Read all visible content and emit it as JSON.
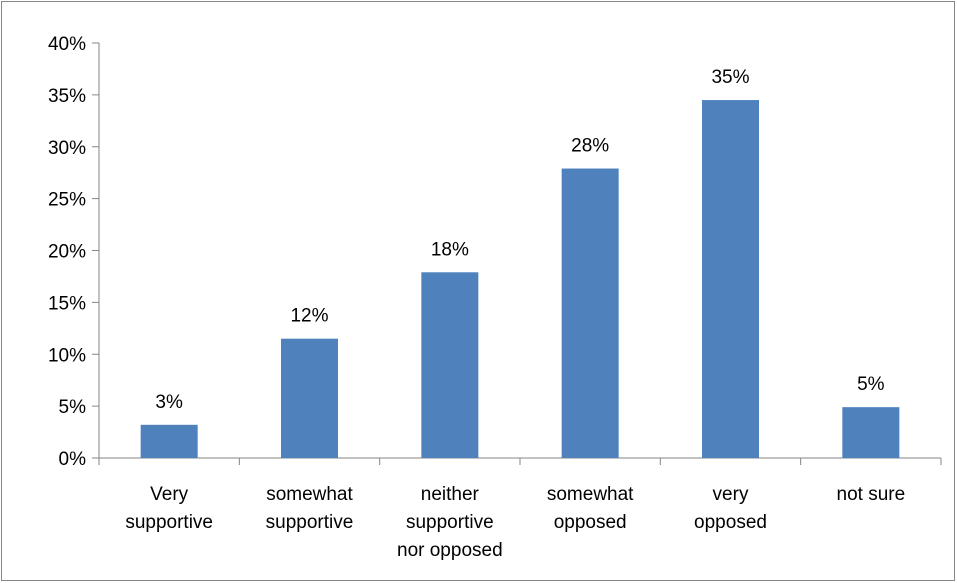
{
  "chart_data": {
    "type": "bar",
    "title": "",
    "xlabel": "",
    "ylabel": "",
    "categories": [
      [
        "Very",
        "supportive"
      ],
      [
        "somewhat",
        "supportive"
      ],
      [
        "neither",
        "supportive",
        "nor opposed"
      ],
      [
        "somewhat",
        "opposed"
      ],
      [
        "very",
        "opposed"
      ],
      [
        "not sure"
      ]
    ],
    "values": [
      3.2,
      11.5,
      17.9,
      27.9,
      34.5,
      4.9
    ],
    "value_labels": [
      "3%",
      "12%",
      "18%",
      "28%",
      "35%",
      "5%"
    ],
    "ylim": [
      0,
      40
    ],
    "yticks": [
      0,
      5,
      10,
      15,
      20,
      25,
      30,
      35,
      40
    ],
    "ytick_labels": [
      "0%",
      "5%",
      "10%",
      "15%",
      "20%",
      "25%",
      "30%",
      "35%",
      "40%"
    ],
    "bar_color": "#4F81BD",
    "axis_color": "#868686",
    "grid": false,
    "legend": "none"
  }
}
